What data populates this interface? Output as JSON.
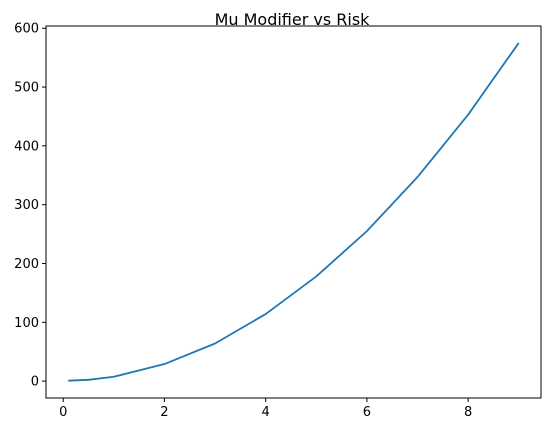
{
  "chart_data": {
    "type": "line",
    "title": "Mu Modifier vs Risk",
    "xlabel": "",
    "ylabel": "",
    "xlim": [
      -0.34,
      9.44
    ],
    "ylim": [
      -28.7,
      603.8
    ],
    "x_ticks": [
      0,
      2,
      4,
      6,
      8
    ],
    "y_ticks": [
      0,
      100,
      200,
      300,
      400,
      500,
      600
    ],
    "grid": false,
    "color": "#1f77b4",
    "series": [
      {
        "x": [
          0.1,
          0.5,
          1,
          2,
          3,
          4,
          5,
          6,
          7,
          8,
          9
        ],
        "y": [
          0.7,
          2.2,
          7.5,
          29,
          64,
          114,
          178,
          255,
          347,
          453,
          575
        ]
      }
    ]
  }
}
